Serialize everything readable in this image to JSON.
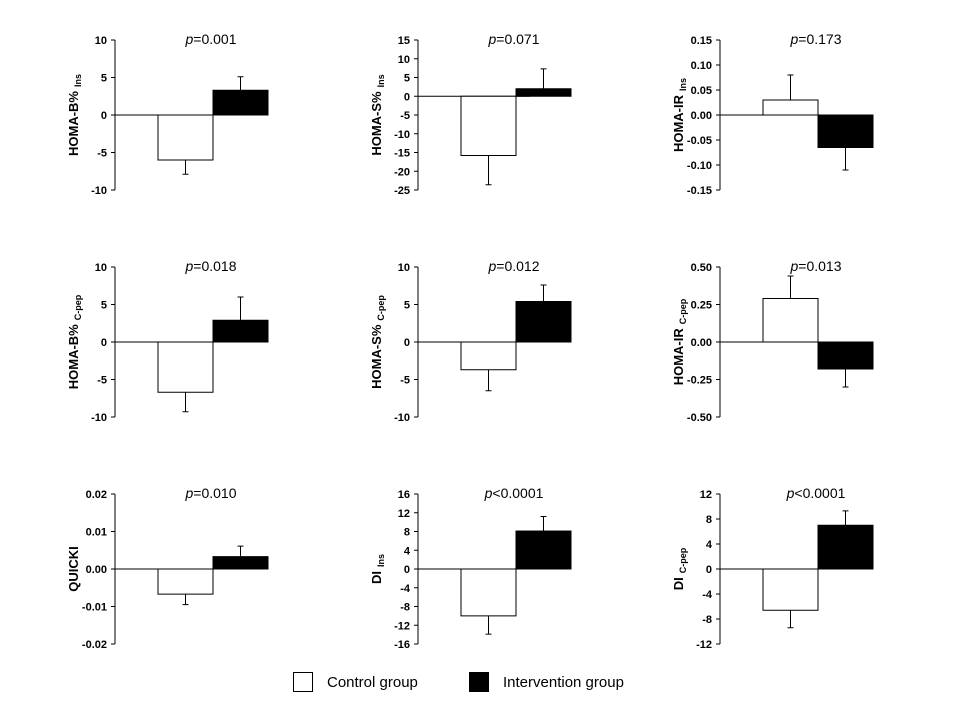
{
  "legend": {
    "control_label": "Control group",
    "intervention_label": "Intervention group",
    "control_color": "#ffffff",
    "intervention_color": "#000000"
  },
  "chart_data": [
    {
      "type": "bar",
      "ylabel_main": "HOMA-B%",
      "ylabel_sub": "Ins",
      "p_prefix": "p",
      "p_text": "=0.001",
      "categories": [
        "Control group",
        "Intervention group"
      ],
      "values": [
        -6.0,
        3.3
      ],
      "errors": [
        1.9,
        1.8
      ],
      "ylim": [
        -10,
        10
      ],
      "ticks": [
        10,
        5,
        0,
        -5,
        -10
      ],
      "tick_labels": [
        "10",
        "5",
        "0",
        "-5",
        "-10"
      ]
    },
    {
      "type": "bar",
      "ylabel_main": "HOMA-S%",
      "ylabel_sub": "Ins",
      "p_prefix": "p",
      "p_text": "=0.071",
      "categories": [
        "Control group",
        "Intervention group"
      ],
      "values": [
        -15.8,
        2.0
      ],
      "errors": [
        7.8,
        5.3
      ],
      "ylim": [
        -25,
        15
      ],
      "ticks": [
        15,
        10,
        5,
        0,
        -5,
        -10,
        -15,
        -20,
        -25
      ],
      "tick_labels": [
        "15",
        "10",
        "5",
        "0",
        "-5",
        "-10",
        "-15",
        "-20",
        "-25"
      ]
    },
    {
      "type": "bar",
      "ylabel_main": "HOMA-IR",
      "ylabel_sub": "Ins",
      "p_prefix": "p",
      "p_text": "=0.173",
      "categories": [
        "Control group",
        "Intervention group"
      ],
      "values": [
        0.03,
        -0.065
      ],
      "errors": [
        0.05,
        0.045
      ],
      "ylim": [
        -0.15,
        0.15
      ],
      "ticks": [
        0.15,
        0.1,
        0.05,
        0,
        -0.05,
        -0.1,
        -0.15
      ],
      "tick_labels": [
        "0.15",
        "0.10",
        "0.05",
        "0.00",
        "-0.05",
        "-0.10",
        "-0.15"
      ]
    },
    {
      "type": "bar",
      "ylabel_main": "HOMA-B%",
      "ylabel_sub": "C-pep",
      "p_prefix": "p",
      "p_text": "=0.018",
      "categories": [
        "Control group",
        "Intervention group"
      ],
      "values": [
        -6.7,
        2.9
      ],
      "errors": [
        2.6,
        3.1
      ],
      "ylim": [
        -10,
        10
      ],
      "ticks": [
        10,
        5,
        0,
        -5,
        -10
      ],
      "tick_labels": [
        "10",
        "5",
        "0",
        "-5",
        "-10"
      ]
    },
    {
      "type": "bar",
      "ylabel_main": "HOMA-S%",
      "ylabel_sub": "C-pep",
      "p_prefix": "p",
      "p_text": "=0.012",
      "categories": [
        "Control group",
        "Intervention group"
      ],
      "values": [
        -3.7,
        5.4
      ],
      "errors": [
        2.8,
        2.2
      ],
      "ylim": [
        -10,
        10
      ],
      "ticks": [
        10,
        5,
        0,
        -5,
        -10
      ],
      "tick_labels": [
        "10",
        "5",
        "0",
        "-5",
        "-10"
      ]
    },
    {
      "type": "bar",
      "ylabel_main": "HOMA-IR",
      "ylabel_sub": "C-pep",
      "p_prefix": "p",
      "p_text": "=0.013",
      "categories": [
        "Control group",
        "Intervention group"
      ],
      "values": [
        0.29,
        -0.18
      ],
      "errors": [
        0.15,
        0.12
      ],
      "ylim": [
        -0.5,
        0.5
      ],
      "ticks": [
        0.5,
        0.25,
        0,
        -0.25,
        -0.5
      ],
      "tick_labels": [
        "0.50",
        "0.25",
        "0.00",
        "-0.25",
        "-0.50"
      ]
    },
    {
      "type": "bar",
      "ylabel_main": "QUICKI",
      "ylabel_sub": "",
      "p_prefix": "p",
      "p_text": "=0.010",
      "categories": [
        "Control group",
        "Intervention group"
      ],
      "values": [
        -0.0067,
        0.0033
      ],
      "errors": [
        0.0028,
        0.0028
      ],
      "ylim": [
        -0.02,
        0.02
      ],
      "ticks": [
        0.02,
        0.01,
        0,
        -0.01,
        -0.02
      ],
      "tick_labels": [
        "0.02",
        "0.01",
        "0.00",
        "-0.01",
        "-0.02"
      ]
    },
    {
      "type": "bar",
      "ylabel_main": "DI",
      "ylabel_sub": "Ins",
      "p_prefix": "p",
      "p_text": "<0.0001",
      "categories": [
        "Control group",
        "Intervention group"
      ],
      "values": [
        -10.0,
        8.1
      ],
      "errors": [
        3.9,
        3.1
      ],
      "ylim": [
        -16,
        16
      ],
      "ticks": [
        16,
        12,
        8,
        4,
        0,
        -4,
        -8,
        -12,
        -16
      ],
      "tick_labels": [
        "16",
        "12",
        "8",
        "4",
        "0",
        "-4",
        "-8",
        "-12",
        "-16"
      ]
    },
    {
      "type": "bar",
      "ylabel_main": "DI",
      "ylabel_sub": "C-pep",
      "p_prefix": "p",
      "p_text": "<0.0001",
      "categories": [
        "Control group",
        "Intervention group"
      ],
      "values": [
        -6.6,
        7.0
      ],
      "errors": [
        2.8,
        2.3
      ],
      "ylim": [
        -12,
        12
      ],
      "ticks": [
        12,
        8,
        4,
        0,
        -4,
        -8,
        -12
      ],
      "tick_labels": [
        "12",
        "8",
        "4",
        "0",
        "-4",
        "-8",
        "-12"
      ]
    }
  ]
}
